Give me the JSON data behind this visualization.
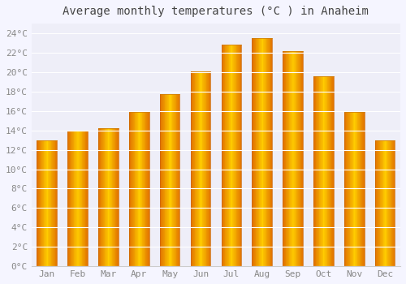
{
  "title": "Average monthly temperatures (°C ) in Anaheim",
  "months": [
    "Jan",
    "Feb",
    "Mar",
    "Apr",
    "May",
    "Jun",
    "Jul",
    "Aug",
    "Sep",
    "Oct",
    "Nov",
    "Dec"
  ],
  "temperatures": [
    13.0,
    14.0,
    14.2,
    15.9,
    17.7,
    20.1,
    22.8,
    23.5,
    22.2,
    19.6,
    15.9,
    13.0
  ],
  "bar_color_center": "#FFB300",
  "bar_color_edge": "#E07000",
  "background_color": "#F5F5FF",
  "plot_bg_color": "#EEEEF8",
  "grid_color": "#FFFFFF",
  "tick_label_color": "#888888",
  "title_color": "#444444",
  "ylim": [
    0,
    25
  ],
  "yticks": [
    0,
    2,
    4,
    6,
    8,
    10,
    12,
    14,
    16,
    18,
    20,
    22,
    24
  ],
  "title_fontsize": 10,
  "tick_fontsize": 8,
  "bar_width": 0.65
}
